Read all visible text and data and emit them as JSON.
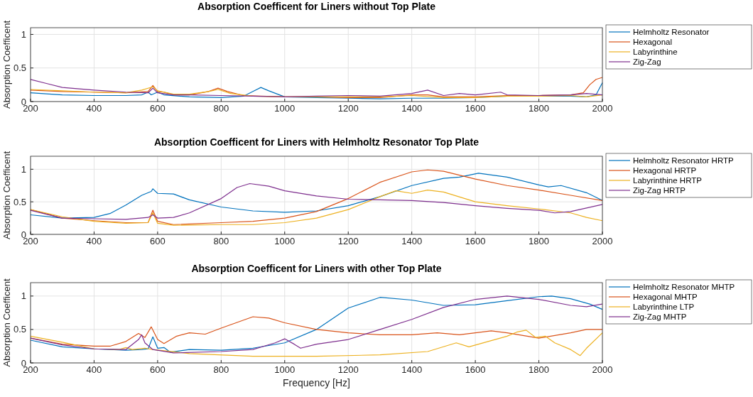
{
  "chart_data": [
    {
      "type": "line",
      "title": "Absorption Coefficent for Liners without Top Plate",
      "ylabel": "Absorption Coefficent",
      "xlim": [
        200,
        2000
      ],
      "xticks": [
        200,
        400,
        600,
        800,
        1000,
        1200,
        1400,
        1600,
        1800,
        2000
      ],
      "ylim": [
        0,
        1.1
      ],
      "yticks": [
        0,
        0.5,
        1
      ],
      "grid": true,
      "legend": "right",
      "series": [
        {
          "name": "Helmholtz Resonator",
          "color": "#0072bd",
          "x": [
            200,
            300,
            400,
            500,
            550,
            570,
            580,
            600,
            620,
            700,
            800,
            870,
            900,
            925,
            950,
            1000,
            1100,
            1200,
            1300,
            1400,
            1500,
            1600,
            1700,
            1800,
            1900,
            1950,
            1980,
            2000
          ],
          "values": [
            0.13,
            0.1,
            0.09,
            0.09,
            0.1,
            0.14,
            0.1,
            0.14,
            0.1,
            0.07,
            0.06,
            0.08,
            0.15,
            0.21,
            0.16,
            0.07,
            0.06,
            0.05,
            0.04,
            0.05,
            0.05,
            0.06,
            0.08,
            0.08,
            0.08,
            0.07,
            0.1,
            0.28
          ]
        },
        {
          "name": "Hexagonal",
          "color": "#d95319",
          "x": [
            200,
            300,
            400,
            500,
            570,
            585,
            600,
            620,
            650,
            700,
            760,
            790,
            820,
            870,
            1000,
            1100,
            1200,
            1300,
            1400,
            1450,
            1500,
            1600,
            1700,
            1800,
            1900,
            1940,
            1960,
            1980,
            2000
          ],
          "values": [
            0.17,
            0.15,
            0.14,
            0.13,
            0.15,
            0.24,
            0.15,
            0.14,
            0.1,
            0.1,
            0.15,
            0.2,
            0.15,
            0.09,
            0.07,
            0.07,
            0.06,
            0.06,
            0.1,
            0.1,
            0.07,
            0.07,
            0.09,
            0.09,
            0.1,
            0.13,
            0.25,
            0.33,
            0.36
          ]
        },
        {
          "name": "Labyrinthine",
          "color": "#edb120",
          "x": [
            200,
            300,
            400,
            500,
            550,
            585,
            600,
            650,
            700,
            760,
            790,
            830,
            900,
            1000,
            1200,
            1300,
            1400,
            1500,
            1600,
            1700,
            1800,
            1900,
            1950,
            2000
          ],
          "values": [
            0.18,
            0.16,
            0.14,
            0.13,
            0.17,
            0.22,
            0.16,
            0.11,
            0.11,
            0.15,
            0.18,
            0.12,
            0.08,
            0.07,
            0.07,
            0.07,
            0.09,
            0.06,
            0.06,
            0.08,
            0.08,
            0.09,
            0.07,
            0.1
          ]
        },
        {
          "name": "Zig-Zag",
          "color": "#7e2f8e",
          "x": [
            200,
            250,
            300,
            400,
            500,
            570,
            585,
            600,
            650,
            700,
            800,
            900,
            1000,
            1100,
            1200,
            1300,
            1400,
            1450,
            1500,
            1550,
            1600,
            1680,
            1700,
            1800,
            1900,
            1950,
            2000
          ],
          "values": [
            0.33,
            0.27,
            0.21,
            0.17,
            0.14,
            0.13,
            0.2,
            0.13,
            0.1,
            0.1,
            0.09,
            0.08,
            0.07,
            0.08,
            0.09,
            0.08,
            0.12,
            0.17,
            0.09,
            0.12,
            0.1,
            0.14,
            0.1,
            0.09,
            0.1,
            0.12,
            0.1
          ]
        }
      ]
    },
    {
      "type": "line",
      "title": "Absorption Coefficent for Liners with Helmholtz Resonator Top Plate",
      "ylabel": "Absorption Coefficent",
      "xlim": [
        200,
        2000
      ],
      "xticks": [
        200,
        400,
        600,
        800,
        1000,
        1200,
        1400,
        1600,
        1800,
        2000
      ],
      "ylim": [
        0,
        1.2
      ],
      "yticks": [
        0,
        0.5,
        1
      ],
      "grid": true,
      "legend": "right",
      "series": [
        {
          "name": "Helmholtz Resonator HRTP",
          "color": "#0072bd",
          "x": [
            200,
            300,
            400,
            450,
            500,
            550,
            580,
            585,
            600,
            650,
            700,
            800,
            900,
            1000,
            1100,
            1200,
            1300,
            1400,
            1500,
            1550,
            1610,
            1700,
            1800,
            1830,
            1870,
            1950,
            2000
          ],
          "values": [
            0.3,
            0.25,
            0.26,
            0.32,
            0.45,
            0.6,
            0.66,
            0.7,
            0.63,
            0.62,
            0.53,
            0.42,
            0.36,
            0.34,
            0.36,
            0.44,
            0.58,
            0.75,
            0.86,
            0.88,
            0.94,
            0.88,
            0.76,
            0.73,
            0.75,
            0.64,
            0.52
          ]
        },
        {
          "name": "Hexagonal HRTP",
          "color": "#d95319",
          "x": [
            200,
            300,
            400,
            500,
            570,
            585,
            600,
            650,
            800,
            900,
            1000,
            1100,
            1200,
            1300,
            1400,
            1450,
            1500,
            1600,
            1700,
            1800,
            1900,
            2000
          ],
          "values": [
            0.38,
            0.25,
            0.21,
            0.18,
            0.18,
            0.37,
            0.2,
            0.15,
            0.18,
            0.2,
            0.25,
            0.35,
            0.55,
            0.8,
            0.96,
            0.99,
            0.97,
            0.85,
            0.75,
            0.68,
            0.6,
            0.52
          ]
        },
        {
          "name": "Labyrinthine HRTP",
          "color": "#edb120",
          "x": [
            200,
            300,
            400,
            500,
            570,
            585,
            600,
            650,
            800,
            900,
            1000,
            1100,
            1200,
            1300,
            1350,
            1400,
            1450,
            1500,
            1600,
            1700,
            1800,
            1900,
            1950,
            2000
          ],
          "values": [
            0.38,
            0.27,
            0.2,
            0.17,
            0.18,
            0.33,
            0.17,
            0.14,
            0.15,
            0.15,
            0.18,
            0.25,
            0.38,
            0.58,
            0.67,
            0.63,
            0.68,
            0.65,
            0.5,
            0.44,
            0.39,
            0.33,
            0.26,
            0.21
          ]
        },
        {
          "name": "Zig-Zag HRTP",
          "color": "#7e2f8e",
          "x": [
            200,
            300,
            400,
            500,
            570,
            585,
            600,
            650,
            700,
            800,
            850,
            890,
            950,
            1000,
            1100,
            1200,
            1300,
            1400,
            1500,
            1600,
            1700,
            1800,
            1850,
            1900,
            2000
          ],
          "values": [
            0.37,
            0.25,
            0.24,
            0.23,
            0.26,
            0.3,
            0.25,
            0.26,
            0.33,
            0.55,
            0.72,
            0.78,
            0.74,
            0.67,
            0.59,
            0.54,
            0.53,
            0.52,
            0.49,
            0.44,
            0.4,
            0.37,
            0.33,
            0.35,
            0.46
          ]
        }
      ]
    },
    {
      "type": "line",
      "title": "Absorption Coefficent for Liners with other Top Plate",
      "xlabel": "Frequency [Hz]",
      "ylabel": "Absorption Coefficent",
      "xlim": [
        200,
        2000
      ],
      "xticks": [
        200,
        400,
        600,
        800,
        1000,
        1200,
        1400,
        1600,
        1800,
        2000
      ],
      "ylim": [
        0,
        1.2
      ],
      "yticks": [
        0,
        0.5,
        1
      ],
      "grid": true,
      "legend": "right",
      "series": [
        {
          "name": "Helmholtz Resonator MHTP",
          "color": "#0072bd",
          "x": [
            200,
            300,
            400,
            500,
            550,
            570,
            585,
            600,
            620,
            640,
            700,
            800,
            900,
            1000,
            1100,
            1200,
            1300,
            1400,
            1500,
            1600,
            1700,
            1800,
            1840,
            1900,
            1960,
            2000
          ],
          "values": [
            0.34,
            0.24,
            0.21,
            0.19,
            0.2,
            0.21,
            0.39,
            0.22,
            0.23,
            0.16,
            0.2,
            0.19,
            0.22,
            0.3,
            0.5,
            0.82,
            0.98,
            0.94,
            0.86,
            0.87,
            0.93,
            0.99,
            1.0,
            0.96,
            0.88,
            0.8
          ]
        },
        {
          "name": "Hexagonal MHTP",
          "color": "#d95319",
          "x": [
            200,
            300,
            400,
            450,
            500,
            540,
            560,
            580,
            600,
            620,
            660,
            700,
            750,
            800,
            900,
            950,
            1000,
            1100,
            1200,
            1300,
            1400,
            1480,
            1550,
            1650,
            1700,
            1800,
            1900,
            1950,
            2000
          ],
          "values": [
            0.37,
            0.28,
            0.25,
            0.25,
            0.32,
            0.44,
            0.38,
            0.54,
            0.35,
            0.29,
            0.4,
            0.45,
            0.43,
            0.52,
            0.69,
            0.67,
            0.6,
            0.5,
            0.45,
            0.42,
            0.42,
            0.45,
            0.42,
            0.48,
            0.45,
            0.37,
            0.45,
            0.5,
            0.5
          ]
        },
        {
          "name": "Labyrinthine LTP",
          "color": "#edb120",
          "x": [
            200,
            300,
            400,
            480,
            500,
            520,
            560,
            585,
            700,
            900,
            1100,
            1300,
            1450,
            1540,
            1580,
            1700,
            1730,
            1760,
            1790,
            1820,
            1850,
            1900,
            1930,
            1950,
            2000
          ],
          "values": [
            0.4,
            0.31,
            0.21,
            0.2,
            0.23,
            0.2,
            0.22,
            0.2,
            0.14,
            0.1,
            0.1,
            0.12,
            0.17,
            0.3,
            0.24,
            0.4,
            0.46,
            0.49,
            0.38,
            0.4,
            0.3,
            0.2,
            0.11,
            0.22,
            0.45
          ]
        },
        {
          "name": "Zig-Zag MHTP",
          "color": "#7e2f8e",
          "x": [
            200,
            300,
            400,
            500,
            540,
            550,
            560,
            585,
            650,
            800,
            900,
            970,
            1000,
            1030,
            1050,
            1100,
            1200,
            1300,
            1400,
            1500,
            1600,
            1700,
            1800,
            1900,
            1950,
            2000
          ],
          "values": [
            0.37,
            0.27,
            0.21,
            0.2,
            0.35,
            0.42,
            0.3,
            0.2,
            0.15,
            0.17,
            0.2,
            0.3,
            0.36,
            0.28,
            0.22,
            0.28,
            0.35,
            0.5,
            0.65,
            0.83,
            0.95,
            1.0,
            0.95,
            0.86,
            0.84,
            0.88
          ]
        }
      ]
    }
  ]
}
